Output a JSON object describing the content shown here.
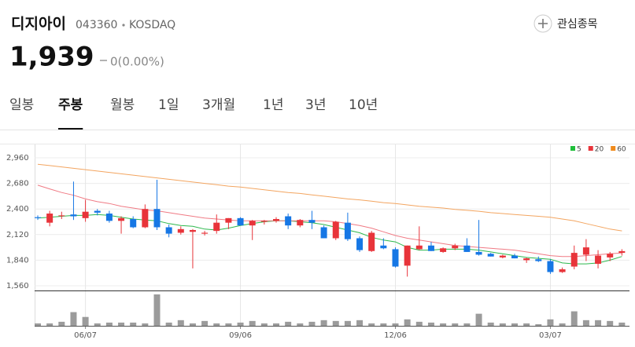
{
  "header": {
    "name": "디지아이",
    "code": "043360",
    "market": "KOSDAQ",
    "watch": "관심종목"
  },
  "price": {
    "value": "1,939",
    "change": "0(0.00%)"
  },
  "tabs": [
    "일봉",
    "주봉",
    "월봉",
    "1일",
    "3개월",
    "1년",
    "3년",
    "10년"
  ],
  "active_tab": 1,
  "chart_data": {
    "type": "candlestick",
    "categories": [
      null,
      null,
      null,
      null,
      "06/07",
      null,
      null,
      null,
      null,
      null,
      null,
      null,
      null,
      null,
      null,
      null,
      null,
      "09/06",
      null,
      null,
      null,
      null,
      null,
      null,
      null,
      null,
      null,
      null,
      null,
      null,
      "12/06",
      null,
      null,
      null,
      null,
      null,
      null,
      null,
      null,
      null,
      null,
      null,
      null,
      "03/07",
      null,
      null,
      null,
      null,
      null,
      null
    ],
    "open": [
      2310,
      2250,
      2330,
      2340,
      2300,
      2380,
      2350,
      2270,
      2290,
      2200,
      2400,
      2200,
      2140,
      2150,
      2130,
      2160,
      2250,
      2300,
      2220,
      2260,
      2270,
      2320,
      2220,
      2280,
      2200,
      2080,
      2250,
      2080,
      1940,
      2000,
      1960,
      1780,
      1960,
      2000,
      1930,
      1970,
      2000,
      1930,
      1910,
      1870,
      1890,
      1840,
      1850,
      1830,
      1710,
      1770,
      1900,
      1800,
      1870,
      1920
    ],
    "high": [
      2330,
      2380,
      2370,
      2700,
      2500,
      2400,
      2380,
      2320,
      2320,
      2450,
      2720,
      2230,
      2210,
      2180,
      2160,
      2340,
      2300,
      2310,
      2280,
      2280,
      2310,
      2350,
      2290,
      2380,
      2220,
      2270,
      2360,
      2100,
      2160,
      2080,
      1980,
      2000,
      2210,
      2040,
      1980,
      2020,
      2080,
      2280,
      1920,
      1900,
      1910,
      1870,
      1880,
      1850,
      1760,
      2000,
      2070,
      1950,
      1930,
      1960
    ],
    "low": [
      2280,
      2210,
      2290,
      2280,
      2260,
      2330,
      2250,
      2130,
      2190,
      2190,
      2170,
      2090,
      2120,
      1750,
      2110,
      2130,
      2180,
      2220,
      2060,
      2230,
      2250,
      2180,
      2200,
      2180,
      2080,
      2060,
      2050,
      1930,
      1930,
      1960,
      1760,
      1660,
      1950,
      1940,
      1920,
      1950,
      1930,
      1890,
      1880,
      1860,
      1860,
      1810,
      1820,
      1690,
      1700,
      1740,
      1830,
      1750,
      1830,
      1890
    ],
    "close": [
      2300,
      2350,
      2330,
      2320,
      2370,
      2360,
      2270,
      2300,
      2200,
      2400,
      2200,
      2130,
      2180,
      2170,
      2140,
      2250,
      2300,
      2220,
      2270,
      2270,
      2290,
      2220,
      2280,
      2250,
      2080,
      2260,
      2070,
      1950,
      2140,
      1970,
      1770,
      2000,
      2000,
      1940,
      1970,
      2000,
      1930,
      1900,
      1880,
      1890,
      1860,
      1860,
      1830,
      1710,
      1740,
      1920,
      1980,
      1890,
      1910,
      1939
    ],
    "up_color": "#e8343a",
    "down_color": "#1677e5",
    "series": [
      {
        "name": "5",
        "color": "#2db84d",
        "values": [
          2300,
          2310,
          2320,
          2330,
          2330,
          2340,
          2330,
          2310,
          2290,
          2280,
          2270,
          2240,
          2220,
          2210,
          2180,
          2170,
          2190,
          2220,
          2240,
          2260,
          2270,
          2270,
          2260,
          2250,
          2230,
          2200,
          2170,
          2140,
          2090,
          2060,
          2040,
          1980,
          1950,
          1950,
          1960,
          1960,
          1960,
          1950,
          1930,
          1910,
          1890,
          1870,
          1860,
          1850,
          1810,
          1800,
          1800,
          1810,
          1840,
          1880
        ]
      },
      {
        "name": "20",
        "color": "#f07a84",
        "values": [
          2660,
          2620,
          2580,
          2550,
          2510,
          2480,
          2460,
          2430,
          2410,
          2390,
          2380,
          2360,
          2340,
          2320,
          2300,
          2290,
          2280,
          2270,
          2270,
          2270,
          2270,
          2270,
          2270,
          2270,
          2270,
          2260,
          2240,
          2220,
          2190,
          2150,
          2110,
          2080,
          2060,
          2040,
          2020,
          2000,
          1990,
          1980,
          1970,
          1960,
          1950,
          1930,
          1910,
          1890,
          1880,
          1880,
          1890,
          1900,
          1910,
          1920
        ]
      },
      {
        "name": "60",
        "color": "#f3a560",
        "values": [
          2890,
          2875,
          2860,
          2845,
          2830,
          2815,
          2800,
          2785,
          2770,
          2755,
          2740,
          2725,
          2710,
          2695,
          2680,
          2665,
          2650,
          2640,
          2625,
          2610,
          2595,
          2580,
          2570,
          2555,
          2540,
          2525,
          2510,
          2500,
          2485,
          2470,
          2460,
          2445,
          2430,
          2420,
          2410,
          2395,
          2385,
          2375,
          2360,
          2350,
          2340,
          2330,
          2320,
          2310,
          2290,
          2270,
          2240,
          2210,
          2180,
          2160
        ]
      }
    ],
    "legend_colors": [
      "#1fbf3a",
      "#e8343a",
      "#f08a1a"
    ],
    "volume": [
      3,
      3,
      5,
      17,
      11,
      3,
      4,
      4,
      4,
      3,
      39,
      4,
      7,
      3,
      6,
      3,
      3,
      4,
      6,
      3,
      3,
      5,
      3,
      5,
      7,
      6,
      6,
      7,
      3,
      3,
      3,
      8,
      5,
      4,
      3,
      3,
      3,
      15,
      4,
      3,
      3,
      3,
      2,
      8,
      3,
      18,
      7,
      7,
      6,
      4
    ],
    "volume_color": "#9b9b9b",
    "volume_ylim": [
      0,
      40
    ],
    "ylim": [
      1560,
      2960
    ],
    "yticks": [
      {
        "value": 1560,
        "label": "1,560"
      },
      {
        "value": 1840,
        "label": "1,840"
      },
      {
        "value": 2120,
        "label": "2,120"
      },
      {
        "value": 2400,
        "label": "2,400"
      },
      {
        "value": 2680,
        "label": "2,680"
      },
      {
        "value": 2960,
        "label": "2,960"
      }
    ],
    "grid": true
  }
}
